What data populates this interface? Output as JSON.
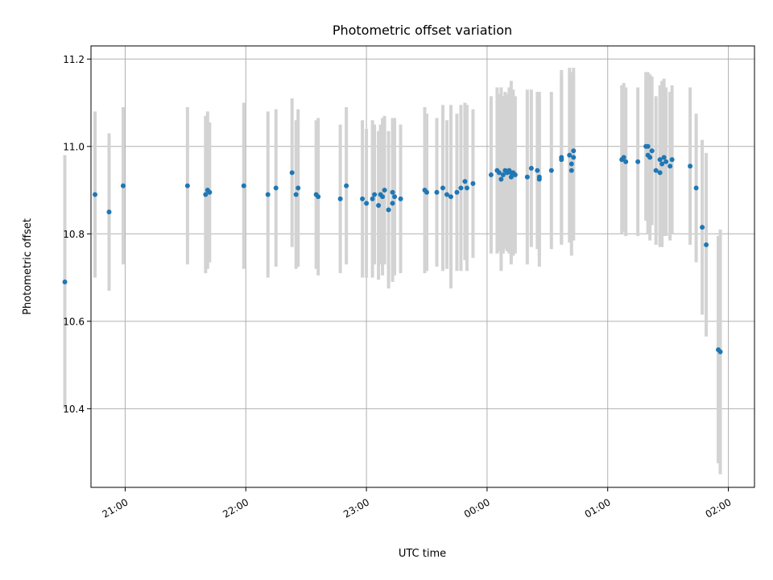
{
  "chart_data": {
    "type": "scatter",
    "title": "Photometric offset variation",
    "xlabel": "UTC time",
    "ylabel": "Photometric offset",
    "x_axis": "time",
    "xlim": [
      "20:43",
      "02:13"
    ],
    "ylim": [
      10.22,
      11.23
    ],
    "xticks": [
      "21:00",
      "22:00",
      "23:00",
      "00:00",
      "01:00",
      "02:00"
    ],
    "yticks": [
      10.4,
      10.6,
      10.8,
      11.0,
      11.2
    ],
    "ytick_labels": [
      "10.4",
      "10.6",
      "10.8",
      "11.0",
      "11.2"
    ],
    "grid": true,
    "legend": "none",
    "colors": {
      "points": "#1f77b4",
      "error_bars": "#d3d3d3",
      "grid": "#b0b0b0"
    },
    "series": [
      {
        "x": [
          "20:30",
          "20:45",
          "20:52",
          "20:59",
          "21:31",
          "21:40",
          "21:41",
          "21:42",
          "21:59",
          "22:11",
          "22:15",
          "22:23",
          "22:25",
          "22:26",
          "22:35",
          "22:36",
          "22:47",
          "22:50",
          "22:58",
          "23:00",
          "23:03",
          "23:04",
          "23:06",
          "23:07",
          "23:08",
          "23:09",
          "23:11",
          "23:13",
          "23:13",
          "23:14",
          "23:17",
          "23:29",
          "23:30",
          "23:35",
          "23:38",
          "23:40",
          "23:42",
          "23:45",
          "23:47",
          "23:49",
          "23:50",
          "23:53",
          "24:02",
          "24:05",
          "24:06",
          "24:07",
          "24:08",
          "24:09",
          "24:10",
          "24:11",
          "24:12",
          "24:12",
          "24:13",
          "24:14",
          "24:20",
          "24:22",
          "24:25",
          "24:26",
          "24:26",
          "24:32",
          "24:37",
          "24:37",
          "24:41",
          "24:42",
          "24:42",
          "24:43",
          "24:43",
          "25:07",
          "25:08",
          "25:09",
          "25:15",
          "25:19",
          "25:20",
          "25:20",
          "25:21",
          "25:22",
          "25:24",
          "25:26",
          "25:26",
          "25:27",
          "25:28",
          "25:29",
          "25:31",
          "25:32",
          "25:41",
          "25:44",
          "25:47",
          "25:49",
          "25:55",
          "25:56"
        ],
        "y": [
          10.69,
          10.89,
          10.85,
          10.91,
          10.91,
          10.89,
          10.9,
          10.895,
          10.91,
          10.89,
          10.905,
          10.94,
          10.89,
          10.905,
          10.89,
          10.885,
          10.88,
          10.91,
          10.88,
          10.87,
          10.88,
          10.89,
          10.865,
          10.89,
          10.885,
          10.9,
          10.855,
          10.87,
          10.895,
          10.885,
          10.88,
          10.9,
          10.895,
          10.895,
          10.905,
          10.89,
          10.885,
          10.895,
          10.905,
          10.92,
          10.905,
          10.915,
          10.935,
          10.945,
          10.94,
          10.925,
          10.935,
          10.945,
          10.94,
          10.945,
          10.93,
          10.94,
          10.94,
          10.935,
          10.93,
          10.95,
          10.945,
          10.925,
          10.93,
          10.945,
          10.975,
          10.97,
          10.98,
          10.945,
          10.96,
          10.99,
          10.975,
          10.97,
          10.975,
          10.965,
          10.965,
          11.0,
          10.98,
          11.0,
          10.975,
          10.99,
          10.945,
          10.97,
          10.94,
          10.96,
          10.975,
          10.965,
          10.955,
          10.97,
          10.955,
          10.905,
          10.815,
          10.775,
          10.535,
          10.53
        ],
        "yerr": [
          0.29,
          0.19,
          0.18,
          0.18,
          0.18,
          0.18,
          0.18,
          0.16,
          0.19,
          0.19,
          0.18,
          0.17,
          0.17,
          0.18,
          0.17,
          0.18,
          0.17,
          0.18,
          0.18,
          0.17,
          0.18,
          0.16,
          0.17,
          0.16,
          0.18,
          0.17,
          0.18,
          0.18,
          0.17,
          0.18,
          0.17,
          0.19,
          0.18,
          0.17,
          0.19,
          0.17,
          0.21,
          0.18,
          0.19,
          0.18,
          0.19,
          0.17,
          0.18,
          0.19,
          0.18,
          0.21,
          0.18,
          0.18,
          0.18,
          0.19,
          0.19,
          0.21,
          0.19,
          0.18,
          0.2,
          0.18,
          0.18,
          0.2,
          0.18,
          0.18,
          0.2,
          0.19,
          0.2,
          0.16,
          0.21,
          0.19,
          0.19,
          0.17,
          0.17,
          0.17,
          0.17,
          0.17,
          0.18,
          0.17,
          0.19,
          0.17,
          0.17,
          0.17,
          0.17,
          0.19,
          0.18,
          0.17,
          0.17,
          0.17,
          0.18,
          0.17,
          0.2,
          0.21,
          0.26,
          0.28
        ]
      }
    ]
  }
}
